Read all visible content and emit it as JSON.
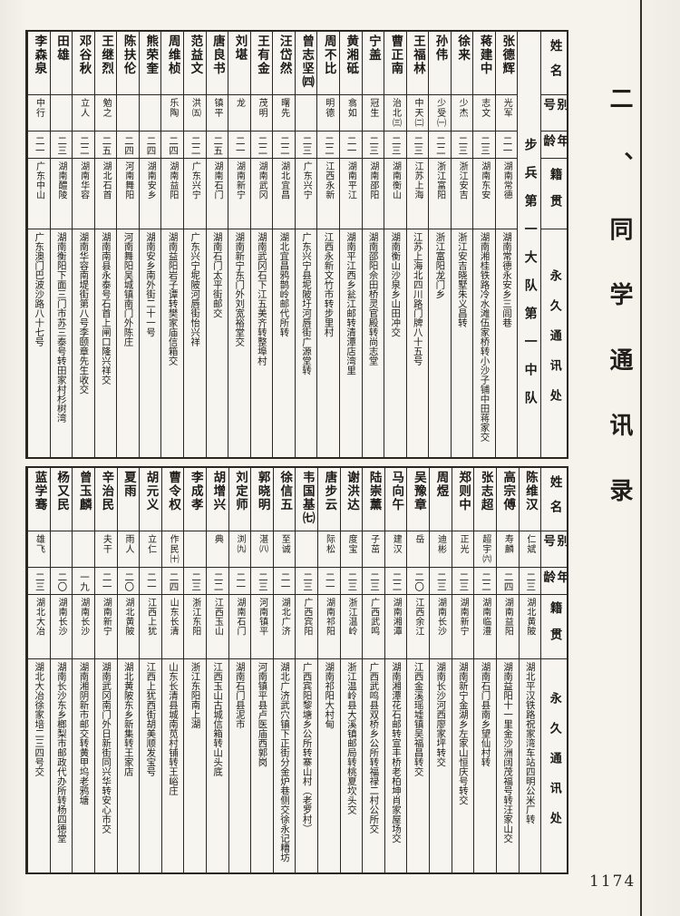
{
  "page": {
    "number": "1174",
    "section_title": "二、同学通讯录"
  },
  "header": {
    "name": "姓名",
    "alias": "别号",
    "age": "年龄",
    "native": "籍贯",
    "address": "永久通讯处"
  },
  "tables": [
    {
      "unit": "步兵第一大队第一中队",
      "entries": [
        {
          "name": "张德辉",
          "alias": "光军",
          "age": "二一",
          "native": "湖南常德",
          "address": "湖南常德永安乡三闾巷"
        },
        {
          "name": "蒋建中",
          "alias": "志文",
          "age": "二三",
          "native": "湖南东安",
          "address": "湖南湘桂铁路冷水滩伍家桥转小沙子铺中田蒋家交"
        },
        {
          "name": "徐来",
          "alias": "少杰",
          "age": "二三",
          "native": "浙江安吉",
          "address": "浙江安吉晓墅朱义昌转"
        },
        {
          "name": "孙伟",
          "alias": "少受㈠",
          "age": "二二",
          "native": "浙江富阳",
          "address": "浙江富阳龙门乡"
        },
        {
          "name": "王福林",
          "alias": "中天㈡",
          "age": "二三",
          "native": "江苏上海",
          "address": "江苏上海北四川路门牌八十五号"
        },
        {
          "name": "曹正南",
          "alias": "治北㈢",
          "age": "二三",
          "native": "湖南衡山",
          "address": "湖南衡山沙泉乡山田冲交"
        },
        {
          "name": "宁盖",
          "alias": "冠生",
          "age": "二三",
          "native": "湖南邵阳",
          "address": "湖南邵阳佘田桥灵官殿转尚志堂"
        },
        {
          "name": "黄湘砥",
          "alias": "翕如",
          "age": "二一",
          "native": "湖南平江",
          "address": "湖南平江西乡瓮江邮转清潭店湾里"
        },
        {
          "name": "周不比",
          "alias": "明德",
          "age": "二二",
          "native": "江西永新",
          "address": "江西永新文竹市转步里村"
        },
        {
          "name": "曾志坚㈣",
          "alias": "",
          "age": "二三",
          "native": "广东兴宁",
          "address": "广东兴宁县坭陂圩河唇街广源堂转"
        },
        {
          "name": "汪岱然",
          "alias": "曙先",
          "age": "二二",
          "native": "湖北宜昌",
          "address": "湖北宜昌鸦鹊岭邮代所转"
        },
        {
          "name": "王有金",
          "alias": "茂明",
          "age": "二二",
          "native": "湖南武冈",
          "address": "湖南武冈石下江五美齐转整埠村"
        },
        {
          "name": "刘堪",
          "alias": "龙",
          "age": "二一",
          "native": "湖南新宁",
          "address": "湖南新宁东门外刘宽裕堂交"
        },
        {
          "name": "唐良书",
          "alias": "镇平",
          "age": "二五",
          "native": "湖南石门",
          "address": "湖南石门太平街邮交"
        },
        {
          "name": "范益文",
          "alias": "洪㈤",
          "age": "二二",
          "native": "广东兴宁",
          "address": "广东兴宁坭陂河唇街怡兴祥"
        },
        {
          "name": "周维桢",
          "alias": "乐陶",
          "age": "二四",
          "native": "湖南益阳",
          "address": "湖南益阳岩子谭转樊家庙信箱交"
        },
        {
          "name": "熊荣奎",
          "alias": "",
          "age": "二四",
          "native": "湖南安乡",
          "address": "湖南安乡南外街二十一号"
        },
        {
          "name": "陈扶伦",
          "alias": "",
          "age": "二四",
          "native": "河南舞阳",
          "address": "河南舞阳吴城镇南门外陈庄"
        },
        {
          "name": "王继烈",
          "alias": "勉之",
          "age": "二五",
          "native": "湖北石首",
          "address": "湖南南县永泰号石首上闸口隆兴祥交"
        },
        {
          "name": "邓谷秋",
          "alias": "立人",
          "age": "二二",
          "native": "湖南华容",
          "address": "湖南华容南堤街第八号李颐章先生收交"
        },
        {
          "name": "田雄",
          "alias": "",
          "age": "二三",
          "native": "湖南醴陵",
          "address": "湖南衡阳下面三门市苏三泰号转田家村杉树湾"
        },
        {
          "name": "李森泉",
          "alias": "中行",
          "age": "二一",
          "native": "广东中山",
          "address": "广东澳门巴波沙路八十七号"
        }
      ]
    },
    {
      "unit": null,
      "entries": [
        {
          "name": "陈维汉",
          "alias": "仁斌",
          "age": "二三",
          "native": "湖北黄陂",
          "address": "湖北平汉铁路祝家湾车站四明公米厂转"
        },
        {
          "name": "高宗傅",
          "alias": "寿麟",
          "age": "二四",
          "native": "湖南益阳",
          "address": "湖南益阳十一里金沙洲阔茂福号转汪家山交"
        },
        {
          "name": "张志超",
          "alias": "超宇㈥",
          "age": "二二",
          "native": "湖南临澧",
          "address": "湖南石门县南乡望仙村转"
        },
        {
          "name": "郑则中",
          "alias": "正光",
          "age": "二三",
          "native": "湖南新宁",
          "address": "湖南新宁金湖乡左家山恒庆号转交"
        },
        {
          "name": "周煜",
          "alias": "迪彬",
          "age": "二三",
          "native": "湖南长沙",
          "address": "湖南长沙河西廖家坪转交"
        },
        {
          "name": "吴豫章",
          "alias": "岳",
          "age": "二〇",
          "native": "江西余江",
          "address": "江西金溪瑶墟镇吴福昌转交"
        },
        {
          "name": "马向午",
          "alias": "建汉",
          "age": "二二",
          "native": "湖南湘潭",
          "address": "湖南湘潭花石邮转宣丰桥老柏坤肖家屋场交"
        },
        {
          "name": "陆崇薰",
          "alias": "子茁",
          "age": "二三",
          "native": "广西武鸣",
          "address": "广西武鸣县双桥乡公所转福禄二村公所交"
        },
        {
          "name": "谢洪达",
          "alias": "度宝",
          "age": "二三",
          "native": "浙江温岭",
          "address": "浙江温岭县大溪镇邮局转桃夏坎头交"
        },
        {
          "name": "唐步云",
          "alias": "际松",
          "age": "二一",
          "native": "湖南祁阳",
          "address": "湖南祁阳大村甸"
        },
        {
          "name": "韦国基㈦",
          "alias": "",
          "age": "二三",
          "native": "广西宾阳",
          "address": "广西宾阳黎塘乡公所转寨山村（老罗村）"
        },
        {
          "name": "徐信五",
          "alias": "至诚",
          "age": "二一",
          "native": "湖北广济",
          "address": "湖北广济武穴镇下正街分金炉巷侧交徐永记糟坊"
        },
        {
          "name": "郭晓明",
          "alias": "湛㈧",
          "age": "二三",
          "native": "河南镇平",
          "address": "河南镇平县卢医庙西郭岗"
        },
        {
          "name": "刘定师",
          "alias": "浏㈨",
          "age": "二一",
          "native": "湖南石门",
          "address": "湖南石门县泥市"
        },
        {
          "name": "胡增兴",
          "alias": "典",
          "age": "二二",
          "native": "江西玉山",
          "address": "江西玉山古城信箱转山头底"
        },
        {
          "name": "李成孝",
          "alias": "",
          "age": "二三",
          "native": "浙江东阳",
          "address": "浙江东阳南上湖"
        },
        {
          "name": "曹令权",
          "alias": "作民㈩",
          "age": "二四",
          "native": "山东长清",
          "address": "山东长清县城南苋村铺转王峪庄"
        },
        {
          "name": "胡元义",
          "alias": "立仁",
          "age": "二一",
          "native": "江西上犹",
          "address": "江西上犹西街胡美顺发宝号"
        },
        {
          "name": "夏雨",
          "alias": "雨人",
          "age": "二〇",
          "native": "湖北黄陂",
          "address": "湖北黄陂东乡新集转王家店"
        },
        {
          "name": "辛治民",
          "alias": "夫干",
          "age": "二一",
          "native": "湖南新宁",
          "address": "湖南武冈南门外日新街同兴华转安心市交"
        },
        {
          "name": "曾玉麟",
          "alias": "",
          "age": "一九",
          "native": "湖南长沙",
          "address": "湖南湘阴新市邮交转黄甲坞老鸦塘"
        },
        {
          "name": "杨又民",
          "alias": "",
          "age": "二〇",
          "native": "湖南长沙",
          "address": "湖南长沙东乡榔梨市邮政代办所转杨四德堂"
        },
        {
          "name": "蓝学骞",
          "alias": "雄飞",
          "age": "二三",
          "native": "湖北大冶",
          "address": "湖北大冶徐家培二三四号交"
        }
      ]
    }
  ]
}
